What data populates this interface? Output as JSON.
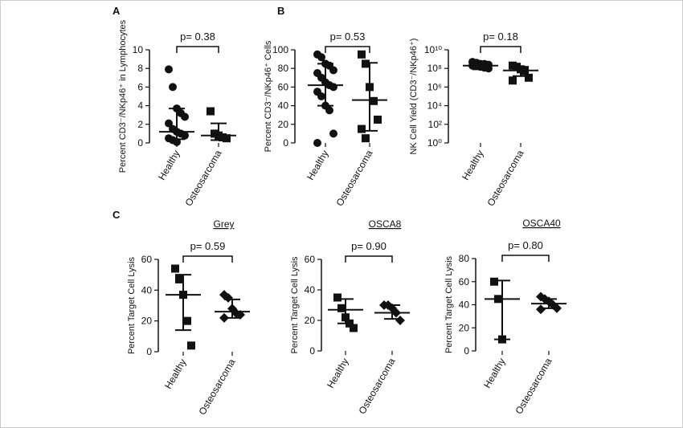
{
  "chart_data": [
    {
      "type": "dot",
      "panel": "A",
      "ylabel": "Percent CD3⁻/NKp46⁺ in Lymphocytes",
      "annotation": "p= 0.38",
      "categories": [
        "Healthy",
        "Osteosarcoma"
      ],
      "markers": [
        "circle",
        "square"
      ],
      "color": "#111111",
      "points": [
        [
          7.9,
          6.0,
          3.7,
          3.2,
          2.8,
          2.1,
          1.5,
          1.2,
          1.0,
          0.8,
          0.5,
          0.3,
          0.1
        ],
        [
          3.4,
          1.0,
          0.8,
          0.6,
          0.5
        ]
      ],
      "centers": [
        1.2,
        0.8
      ],
      "lows": [
        0.4,
        0.3
      ],
      "highs": [
        3.7,
        2.1
      ],
      "ylim": [
        0,
        10
      ],
      "yticks": [
        0,
        2,
        4,
        6,
        8,
        10
      ],
      "log": false
    },
    {
      "type": "dot",
      "panel": "B",
      "ylabel": "Percent CD3⁻/NKp46⁺ Cells",
      "annotation": "p= 0.53",
      "categories": [
        "Healthy",
        "Osteosarcoma"
      ],
      "markers": [
        "circle",
        "square"
      ],
      "color": "#111111",
      "points": [
        [
          95,
          92,
          85,
          83,
          78,
          75,
          70,
          65,
          62,
          60,
          55,
          50,
          40,
          35,
          10,
          0
        ],
        [
          95,
          85,
          60,
          45,
          25,
          15,
          5
        ]
      ],
      "centers": [
        62,
        46
      ],
      "lows": [
        40,
        13
      ],
      "highs": [
        85,
        86
      ],
      "ylim": [
        0,
        100
      ],
      "yticks": [
        0,
        20,
        40,
        60,
        80,
        100
      ],
      "log": false
    },
    {
      "type": "dot",
      "ylabel": "NK Cell Yield (CD3⁻/NKp46⁺)",
      "annotation": "p= 0.18",
      "categories": [
        "Healthy",
        "Osteosarcoma"
      ],
      "markers": [
        "circle",
        "square"
      ],
      "color": "#111111",
      "points": [
        [
          500000000,
          400000000,
          300000000,
          300000000,
          250000000,
          200000000,
          200000000,
          150000000,
          120000000,
          100000000
        ],
        [
          200000000,
          150000000,
          80000000,
          50000000,
          10000000,
          5000000
        ]
      ],
      "centers": [
        200000000,
        60000000
      ],
      "lows": [
        80000000,
        15000000
      ],
      "highs": [
        400000000,
        150000000
      ],
      "ylim": [
        1,
        10000000000
      ],
      "yticks": [
        {
          "value": 1,
          "label": "10⁰"
        },
        {
          "value": 100,
          "label": "10²"
        },
        {
          "value": 10000,
          "label": "10⁴"
        },
        {
          "value": 1000000,
          "label": "10⁶"
        },
        {
          "value": 100000000,
          "label": "10⁸"
        },
        {
          "value": 10000000000,
          "label": "10¹⁰"
        }
      ],
      "log": true
    },
    {
      "type": "dot",
      "panel": "C",
      "title": "Grey",
      "ylabel": "Percent Target Cell Lysis",
      "annotation": "p= 0.59",
      "categories": [
        "Healthy",
        "Osteosarcoma"
      ],
      "markers": [
        "square",
        "diamond"
      ],
      "color": "#111111",
      "points": [
        [
          54,
          47,
          37,
          20,
          4
        ],
        [
          37,
          35,
          28,
          25,
          24,
          22
        ]
      ],
      "centers": [
        37,
        26
      ],
      "lows": [
        14,
        22
      ],
      "highs": [
        50,
        34
      ],
      "ylim": [
        0,
        60
      ],
      "yticks": [
        0,
        20,
        40,
        60
      ],
      "log": false
    },
    {
      "type": "dot",
      "title": "OSCA8",
      "ylabel": "Percent Target Cell Lysis",
      "annotation": "p= 0.90",
      "categories": [
        "Healthy",
        "Osteosarcoma"
      ],
      "markers": [
        "square",
        "diamond"
      ],
      "color": "#111111",
      "points": [
        [
          35,
          28,
          22,
          18,
          15
        ],
        [
          30,
          30,
          28,
          25,
          20
        ]
      ],
      "centers": [
        27,
        25
      ],
      "lows": [
        18,
        21
      ],
      "highs": [
        34,
        30
      ],
      "ylim": [
        0,
        60
      ],
      "yticks": [
        0,
        20,
        40,
        60
      ],
      "log": false
    },
    {
      "type": "dot",
      "title": "OSCA40",
      "ylabel": "Percent Target Cell Lysis",
      "annotation": "p= 0.80",
      "categories": [
        "Healthy",
        "Osteosarcoma"
      ],
      "markers": [
        "square",
        "diamond"
      ],
      "color": "#111111",
      "points": [
        [
          60,
          45,
          10
        ],
        [
          47,
          45,
          43,
          40,
          37,
          36
        ]
      ],
      "centers": [
        45,
        41
      ],
      "lows": [
        10,
        37
      ],
      "highs": [
        61,
        45
      ],
      "ylim": [
        0,
        80
      ],
      "yticks": [
        0,
        20,
        40,
        60,
        80
      ],
      "log": false
    }
  ]
}
